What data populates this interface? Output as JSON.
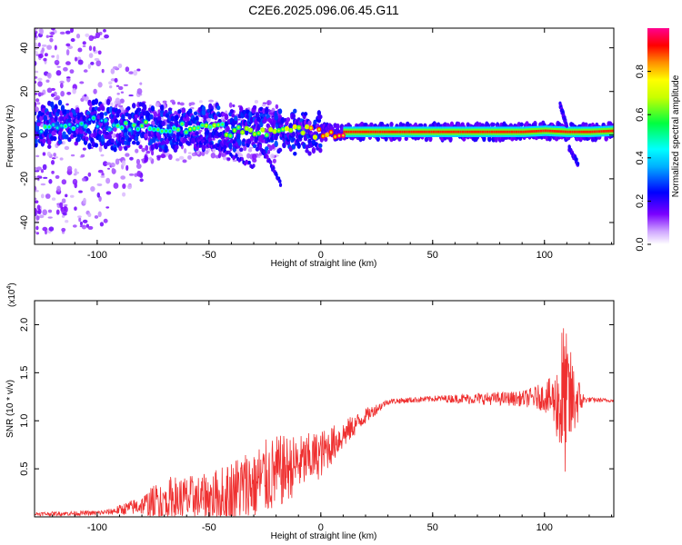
{
  "title": "C2E6.2025.096.06.45.G11",
  "chart_data": [
    {
      "type": "heatmap",
      "xlabel": "Height of straight line (km)",
      "ylabel": "Frequency (Hz)",
      "xlim": [
        -128,
        131
      ],
      "ylim": [
        -50,
        49
      ],
      "xticks": [
        -100,
        -50,
        0,
        50,
        100
      ],
      "yticks": [
        -40,
        -20,
        0,
        20,
        40
      ],
      "colorbar": {
        "label": "Normalized spectral amplitude",
        "range": [
          0,
          1
        ],
        "ticks": [
          "0.0",
          "0.2",
          "0.4",
          "0.6",
          "0.8"
        ],
        "colors": [
          "#ffffff",
          "#7a00ff",
          "#0000ff",
          "#00ffff",
          "#00ff00",
          "#ffff00",
          "#ff0000",
          "#ff00a0"
        ]
      },
      "ridge": {
        "x": [
          -128,
          -120,
          -110,
          -100,
          -90,
          -80,
          -70,
          -60,
          -50,
          -40,
          -30,
          -20,
          -10,
          0,
          10,
          30,
          50,
          70,
          90,
          100,
          110,
          120,
          131
        ],
        "y": [
          3,
          5,
          4,
          6,
          3,
          5,
          2,
          3,
          4,
          2,
          3,
          2,
          1.5,
          1.5,
          1.5,
          1.5,
          1.5,
          1.5,
          1.5,
          2,
          1.5,
          1.5,
          2
        ],
        "amp": [
          0.3,
          0.4,
          0.35,
          0.3,
          0.4,
          0.45,
          0.5,
          0.5,
          0.55,
          0.5,
          0.6,
          0.6,
          0.7,
          0.8,
          0.9,
          0.9,
          0.9,
          0.9,
          0.9,
          0.8,
          0.6,
          0.8,
          0.7
        ]
      },
      "branches": [
        {
          "x": [
            -55,
            -45,
            -35,
            -30
          ],
          "y": [
            -2,
            -6,
            -12,
            -14
          ]
        },
        {
          "x": [
            -28,
            -22,
            -18
          ],
          "y": [
            -4,
            -14,
            -22
          ]
        },
        {
          "x": [
            107,
            110
          ],
          "y": [
            14,
            4
          ]
        },
        {
          "x": [
            111,
            115
          ],
          "y": [
            -6,
            -13
          ]
        }
      ]
    },
    {
      "type": "line",
      "xlabel": "Height of straight line (km)",
      "ylabel": "SNR (10 * v/v)",
      "y_multiplier": "(x10",
      "y_multiplier_exp": "4",
      "xlim": [
        -128,
        131
      ],
      "ylim": [
        0,
        22500
      ],
      "xticks": [
        -100,
        -50,
        0,
        50,
        100
      ],
      "yticks": [
        5000,
        10000,
        15000,
        20000
      ],
      "ytick_labels": [
        "0.5",
        "1.0",
        "1.5",
        "2.0"
      ],
      "color": "#ef3030",
      "envelope": {
        "x": [
          -128,
          -100,
          -95,
          -80,
          -70,
          -60,
          -50,
          -40,
          -30,
          -20,
          -10,
          0,
          10,
          20,
          30,
          50,
          70,
          90,
          100,
          105,
          108,
          111,
          115,
          118,
          131
        ],
        "base": [
          300,
          400,
          500,
          1200,
          1800,
          1800,
          2000,
          2500,
          3500,
          4500,
          5500,
          6500,
          8500,
          10500,
          12000,
          12300,
          12300,
          12300,
          12500,
          12000,
          12000,
          12000,
          12200,
          12200,
          12100
        ],
        "amp": [
          200,
          250,
          300,
          1000,
          2500,
          2500,
          2500,
          3500,
          4000,
          4000,
          3000,
          2500,
          1500,
          800,
          300,
          300,
          600,
          800,
          1500,
          3000,
          9000,
          6000,
          2500,
          300,
          150
        ]
      }
    }
  ]
}
